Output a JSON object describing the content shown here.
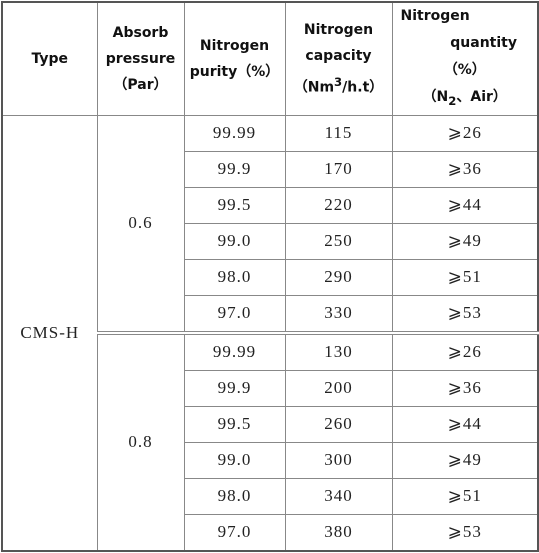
{
  "header": {
    "type": "Type",
    "pressure": [
      "Absorb",
      "pressure",
      "（Par）"
    ],
    "purity": [
      "Nitrogen",
      "purity（%）"
    ],
    "capacity": [
      "Nitrogen",
      "capacity",
      "（Nm",
      "3",
      "/h.t）"
    ],
    "quantity": [
      "Nitrogen",
      "quantity",
      "（%）",
      "（N",
      "2",
      "、Air）"
    ]
  },
  "table": {
    "type": "CMS-H",
    "groups": [
      {
        "pressure": "0.6",
        "rows": [
          [
            "99.99",
            "115",
            "⩾26"
          ],
          [
            "99.9",
            "170",
            "⩾36"
          ],
          [
            "99.5",
            "220",
            "⩾44"
          ],
          [
            "99.0",
            "250",
            "⩾49"
          ],
          [
            "98.0",
            "290",
            "⩾51"
          ],
          [
            "97.0",
            "330",
            "⩾53"
          ]
        ]
      },
      {
        "pressure": "0.8",
        "rows": [
          [
            "99.99",
            "130",
            "⩾26"
          ],
          [
            "99.9",
            "200",
            "⩾36"
          ],
          [
            "99.5",
            "260",
            "⩾44"
          ],
          [
            "99.0",
            "300",
            "⩾49"
          ],
          [
            "98.0",
            "340",
            "⩾51"
          ],
          [
            "97.0",
            "380",
            "⩾53"
          ]
        ]
      }
    ]
  }
}
